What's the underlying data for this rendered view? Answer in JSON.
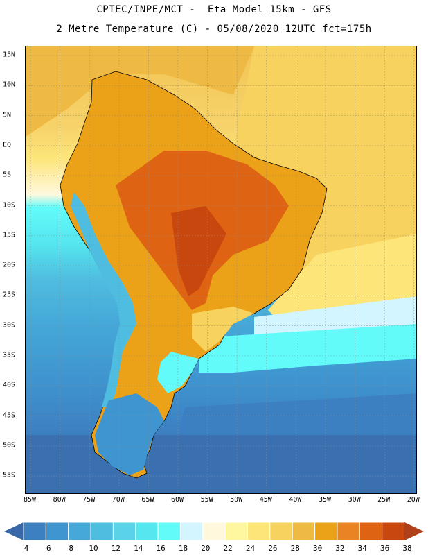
{
  "header": {
    "title_line1": "CPTEC/INPE/MCT -  Eta Model 15km - GFS",
    "title_line2": "2 Metre Temperature (C) - 05/08/2020 12UTC fct=175h"
  },
  "map": {
    "lat_labels": [
      "15N",
      "10N",
      "5N",
      "EQ",
      "5S",
      "10S",
      "15S",
      "20S",
      "25S",
      "30S",
      "35S",
      "40S",
      "45S",
      "50S",
      "55S"
    ],
    "lon_labels": [
      "85W",
      "80W",
      "75W",
      "70W",
      "65W",
      "60W",
      "55W",
      "50W",
      "45W",
      "40W",
      "35W",
      "30W",
      "25W",
      "20W"
    ],
    "land_outline_color": "#000000",
    "grid_color": "#8c8c8c"
  },
  "legend": {
    "ticks": [
      "4",
      "6",
      "8",
      "10",
      "12",
      "14",
      "16",
      "18",
      "20",
      "22",
      "24",
      "26",
      "28",
      "30",
      "32",
      "34",
      "36",
      "38"
    ],
    "colors": [
      "#3a6fb0",
      "#3d80c2",
      "#3f95cf",
      "#45a8d8",
      "#4fbde0",
      "#5ad2e8",
      "#55e6ef",
      "#62fbfa",
      "#d2f5ff",
      "#fff8dd",
      "#fff6a0",
      "#fde57a",
      "#f7d25f",
      "#efba43",
      "#eba118",
      "#e88423",
      "#de6414",
      "#c8470e"
    ],
    "low_arrow_color": "#3868a8",
    "high_arrow_color": "#b0401a"
  }
}
